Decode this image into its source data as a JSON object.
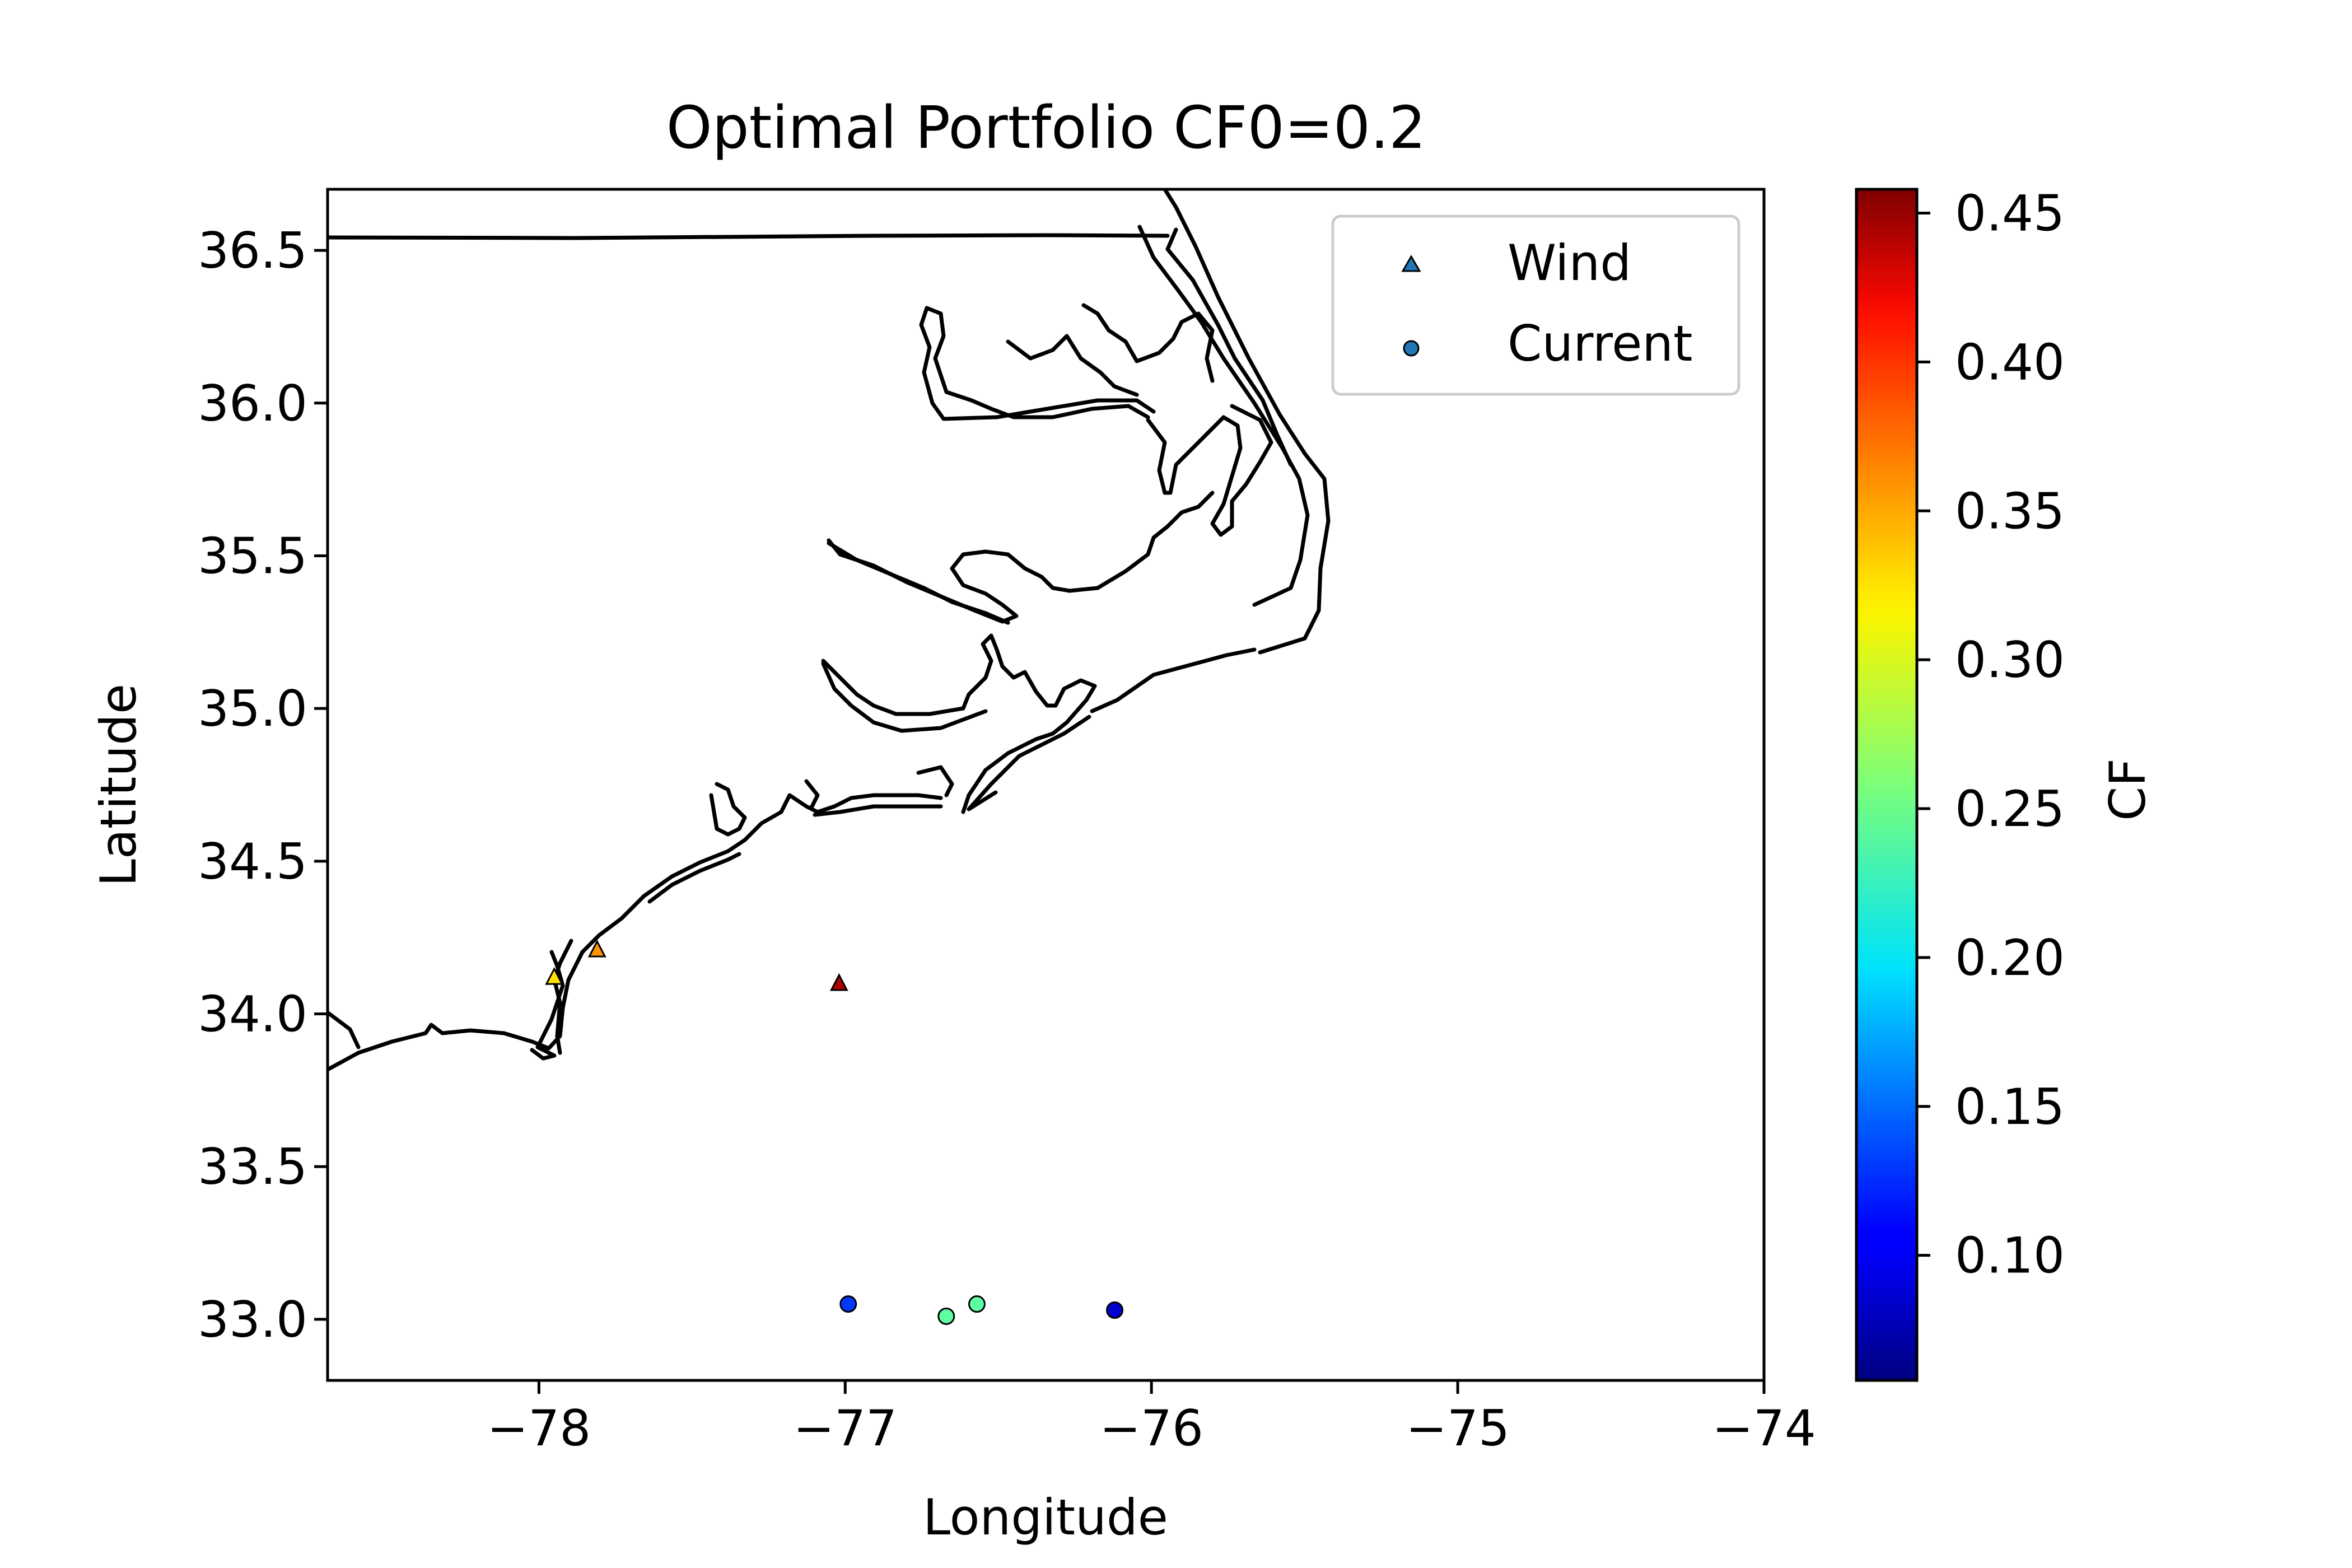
{
  "chart_data": {
    "type": "scatter",
    "title": "Optimal Portfolio CF0=0.2",
    "xlabel": "Longitude",
    "ylabel": "Latitude",
    "xlim": [
      -78.69,
      -74.0
    ],
    "ylim": [
      32.8,
      36.7
    ],
    "xticks": [
      -78,
      -77,
      -76,
      -75,
      -74
    ],
    "xtick_labels": [
      "−78",
      "−77",
      "−76",
      "−75",
      "−74"
    ],
    "yticks": [
      33.0,
      33.5,
      34.0,
      34.5,
      35.0,
      35.5,
      36.0,
      36.5
    ],
    "ytick_labels": [
      "33.0",
      "33.5",
      "34.0",
      "34.5",
      "35.0",
      "35.5",
      "36.0",
      "36.5"
    ],
    "grid": false,
    "legend_position": "top-right",
    "colorbar": {
      "label": "CF",
      "min": 0.058,
      "max": 0.458,
      "ticks": [
        0.1,
        0.15,
        0.2,
        0.25,
        0.3,
        0.35,
        0.4,
        0.45
      ],
      "tick_labels": [
        "0.10",
        "0.15",
        "0.20",
        "0.25",
        "0.30",
        "0.35",
        "0.40",
        "0.45"
      ],
      "colormap": "jet"
    },
    "series": [
      {
        "name": "Wind",
        "marker": "triangle",
        "legend_color": "#1f77b4",
        "points": [
          {
            "x": -77.02,
            "y": 34.1,
            "cf": 0.44
          },
          {
            "x": -77.81,
            "y": 34.21,
            "cf": 0.35
          },
          {
            "x": -77.95,
            "y": 34.12,
            "cf": 0.32
          }
        ]
      },
      {
        "name": "Current",
        "marker": "circle",
        "legend_color": "#1f77b4",
        "points": [
          {
            "x": -76.99,
            "y": 33.05,
            "cf": 0.13
          },
          {
            "x": -76.67,
            "y": 33.01,
            "cf": 0.245
          },
          {
            "x": -76.57,
            "y": 33.05,
            "cf": 0.245
          },
          {
            "x": -76.12,
            "y": 33.03,
            "cf": 0.09
          }
        ]
      }
    ]
  }
}
